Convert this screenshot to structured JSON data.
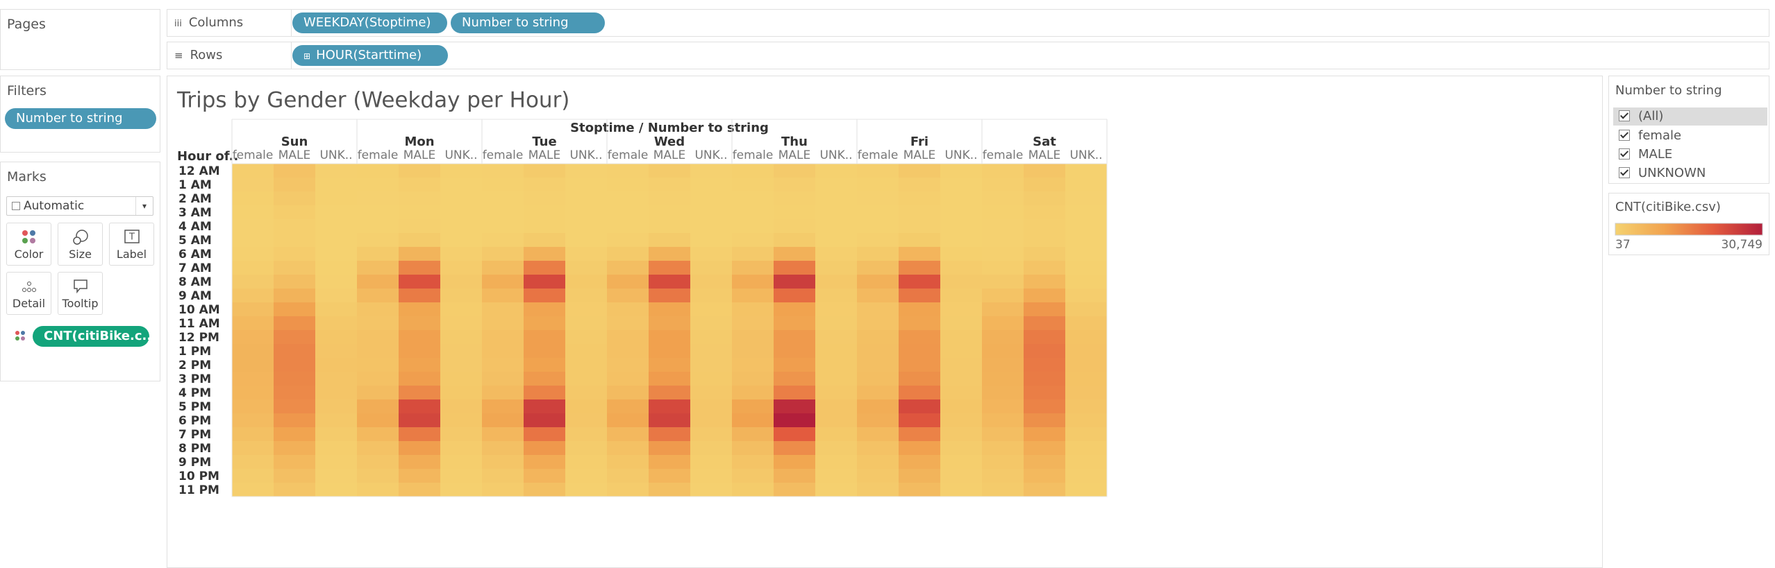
{
  "pages_label": "Pages",
  "columns_shelf": {
    "label": "Columns",
    "pills": [
      "WEEKDAY(Stoptime)",
      "Number to string"
    ]
  },
  "rows_shelf": {
    "label": "Rows",
    "pills": [
      "HOUR(Starttime)"
    ]
  },
  "filters": {
    "label": "Filters",
    "pills": [
      "Number to string"
    ]
  },
  "marks": {
    "label": "Marks",
    "mark_type": "Automatic",
    "buttons": [
      "Color",
      "Size",
      "Label",
      "Detail",
      "Tooltip"
    ],
    "pill": "CNT(citiBike.c.."
  },
  "filter_card": {
    "title": "Number to string",
    "items": [
      "(All)",
      "female",
      "MALE",
      "UNKNOWN"
    ]
  },
  "chart_data": {
    "type": "heatmap",
    "title": "Trips by Gender (Weekday per Hour)",
    "column_header": "Stoptime  /  Number to string",
    "row_header": "Hour of..",
    "days": [
      "Sun",
      "Mon",
      "Tue",
      "Wed",
      "Thu",
      "Fri",
      "Sat"
    ],
    "genders": [
      "female",
      "MALE",
      "UNK.."
    ],
    "hours": [
      "12 AM",
      "1 AM",
      "2 AM",
      "3 AM",
      "4 AM",
      "5 AM",
      "6 AM",
      "7 AM",
      "8 AM",
      "9 AM",
      "10 AM",
      "11 AM",
      "12 PM",
      "1 PM",
      "2 PM",
      "3 PM",
      "4 PM",
      "5 PM",
      "6 PM",
      "7 PM",
      "8 PM",
      "9 PM",
      "10 PM",
      "11 PM"
    ],
    "values": [
      [
        [
          1000,
          800,
          550,
          320,
          180,
          150,
          400,
          900,
          1700,
          2800,
          4300,
          5500,
          6300,
          6500,
          6500,
          6300,
          6100,
          5700,
          5000,
          4000,
          2800,
          1900,
          1400,
          900
        ],
        [
          3500,
          2800,
          2000,
          1200,
          700,
          600,
          1300,
          2600,
          4500,
          6800,
          10000,
          12500,
          14000,
          14500,
          14500,
          14300,
          14000,
          13500,
          12000,
          10000,
          7500,
          5500,
          4200,
          2800
        ],
        [
          400,
          300,
          200,
          120,
          60,
          37,
          90,
          200,
          400,
          800,
          1500,
          2200,
          2700,
          2900,
          3000,
          2900,
          2800,
          2600,
          2200,
          1600,
          1000,
          650,
          450,
          280
        ]
      ],
      [
        [
          550,
          280,
          150,
          100,
          110,
          380,
          1800,
          4300,
          7200,
          5200,
          3000,
          2900,
          3600,
          3600,
          3400,
          3700,
          4800,
          8100,
          8600,
          5500,
          3600,
          2600,
          1900,
          1200
        ],
        [
          1800,
          900,
          500,
          350,
          400,
          1500,
          6500,
          14500,
          22000,
          16000,
          9500,
          9000,
          10500,
          10500,
          10000,
          11000,
          14000,
          23000,
          24000,
          16000,
          11000,
          8000,
          6000,
          3800
        ],
        [
          200,
          90,
          60,
          40,
          45,
          120,
          600,
          1300,
          2000,
          1500,
          1200,
          1300,
          1600,
          1700,
          1700,
          1800,
          2100,
          2600,
          2500,
          1900,
          1300,
          900,
          650,
          400
        ]
      ],
      [
        [
          480,
          220,
          120,
          90,
          100,
          400,
          1900,
          4600,
          7700,
          5500,
          3100,
          3000,
          3700,
          3700,
          3500,
          3900,
          5100,
          8800,
          9300,
          5900,
          3900,
          2800,
          2000,
          1300
        ],
        [
          1500,
          700,
          400,
          300,
          350,
          1600,
          7000,
          15500,
          23500,
          17000,
          9800,
          9200,
          10800,
          10800,
          10300,
          11500,
          14800,
          25000,
          26000,
          17000,
          11800,
          8500,
          6300,
          4000
        ],
        [
          180,
          80,
          50,
          40,
          42,
          130,
          620,
          1350,
          2100,
          1600,
          1250,
          1350,
          1650,
          1750,
          1750,
          1850,
          2200,
          2700,
          2600,
          2000,
          1350,
          950,
          680,
          420
        ]
      ],
      [
        [
          500,
          240,
          130,
          95,
          105,
          390,
          1850,
          4500,
          7500,
          5400,
          3050,
          2950,
          3650,
          3650,
          3450,
          3800,
          5000,
          8400,
          8900,
          5700,
          3800,
          2700,
          1950,
          1250
        ],
        [
          1600,
          750,
          420,
          310,
          360,
          1550,
          6800,
          15000,
          23000,
          16500,
          9600,
          9100,
          10600,
          10600,
          10100,
          11200,
          14400,
          23500,
          24500,
          16500,
          11500,
          8300,
          6200,
          4000
        ],
        [
          190,
          85,
          55,
          40,
          44,
          125,
          610,
          1320,
          2050,
          1550,
          1220,
          1320,
          1620,
          1720,
          1720,
          1820,
          2150,
          2650,
          2550,
          1950,
          1320,
          920,
          660,
          410
        ]
      ],
      [
        [
          520,
          250,
          140,
          100,
          110,
          410,
          2000,
          4800,
          8200,
          5800,
          3300,
          3200,
          3900,
          3900,
          3700,
          4100,
          5300,
          9500,
          10300,
          6600,
          4300,
          3000,
          2200,
          1450
        ],
        [
          1700,
          800,
          450,
          330,
          380,
          1650,
          7200,
          16000,
          25500,
          18000,
          10200,
          9800,
          11500,
          11500,
          11000,
          12200,
          15500,
          28500,
          30749,
          20500,
          13500,
          9500,
          7000,
          4800
        ],
        [
          200,
          90,
          58,
          41,
          46,
          130,
          640,
          1380,
          2150,
          1600,
          1260,
          1360,
          1680,
          1780,
          1780,
          1880,
          2250,
          2850,
          2800,
          2100,
          1420,
          1000,
          720,
          460
        ]
      ],
      [
        [
          700,
          350,
          190,
          120,
          110,
          370,
          1750,
          4200,
          7200,
          5400,
          3200,
          3200,
          4000,
          4100,
          4100,
          4400,
          5400,
          8200,
          7600,
          5200,
          3600,
          2700,
          2200,
          1700
        ],
        [
          2200,
          1100,
          600,
          400,
          400,
          1450,
          6300,
          14000,
          22000,
          16500,
          10000,
          9800,
          11800,
          12000,
          12000,
          13000,
          15500,
          23500,
          21500,
          15000,
          10500,
          8000,
          6500,
          5000
        ],
        [
          250,
          120,
          70,
          45,
          45,
          120,
          580,
          1250,
          2000,
          1550,
          1300,
          1400,
          1750,
          1850,
          1900,
          2000,
          2300,
          2700,
          2500,
          1900,
          1350,
          1000,
          800,
          600
        ]
      ],
      [
        [
          900,
          650,
          420,
          260,
          150,
          180,
          450,
          1000,
          2000,
          3400,
          5100,
          6400,
          7200,
          7400,
          7300,
          7100,
          6800,
          6300,
          5500,
          4300,
          3100,
          2400,
          2000,
          1500
        ],
        [
          2900,
          2100,
          1400,
          900,
          600,
          700,
          1500,
          3000,
          5500,
          8500,
          12000,
          14500,
          16000,
          16500,
          16300,
          16000,
          15500,
          14800,
          13000,
          10500,
          8000,
          6500,
          5500,
          4200
        ],
        [
          350,
          250,
          150,
          90,
          50,
          45,
          110,
          250,
          550,
          1100,
          2000,
          2800,
          3300,
          3500,
          3500,
          3400,
          3200,
          2900,
          2400,
          1800,
          1200,
          900,
          750,
          550
        ]
      ]
    ],
    "color_legend_title": "CNT(citiBike.csv)",
    "colorlim": [
      37,
      {
        "value": 30749,
        "label": "30,749"
      }
    ],
    "colors": [
      "#f5d270",
      "#f1a34f",
      "#e35b3e",
      "#b21f3b"
    ]
  }
}
